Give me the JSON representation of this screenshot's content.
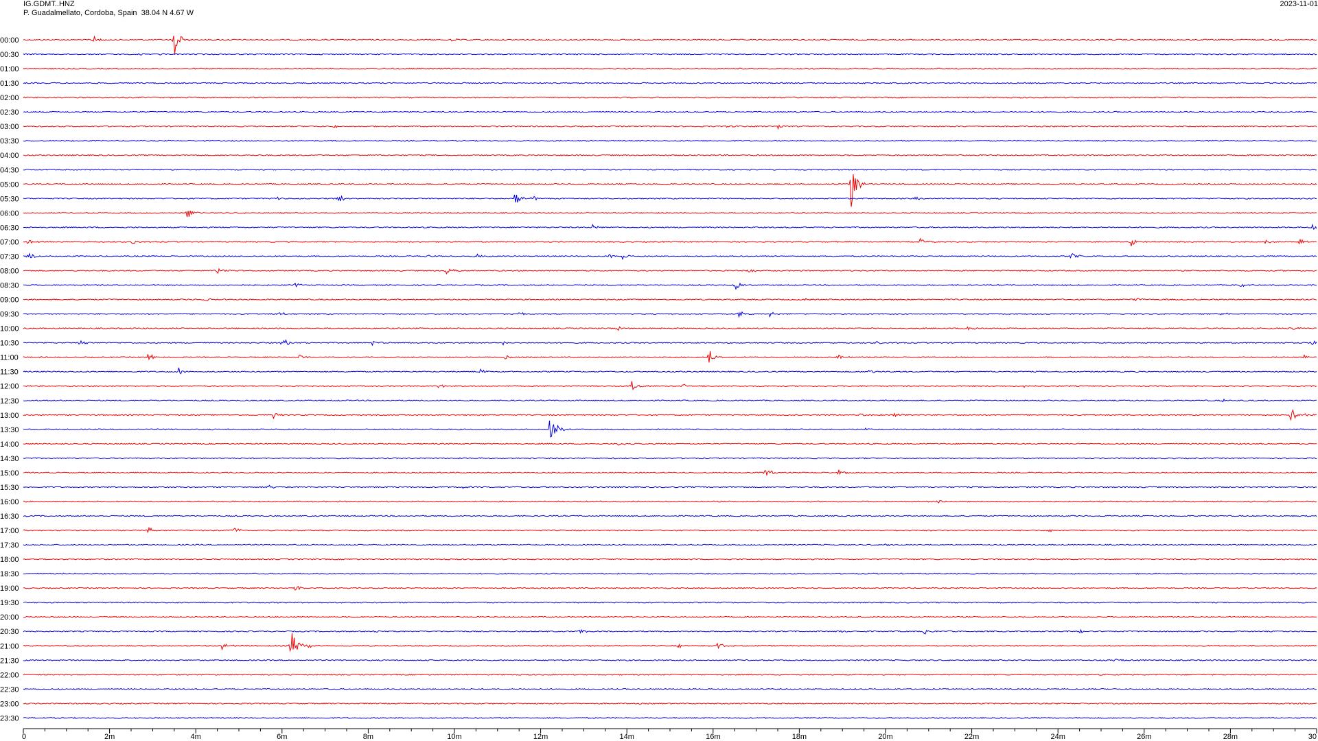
{
  "header": {
    "station": "IG.GDMT..HNZ",
    "location": "P. Guadalmellato, Cordoba, Spain  38.04 N 4.67 W",
    "date": "2023-11-01"
  },
  "colors": {
    "odd_trace": "#ee0000",
    "even_trace": "#0000dd",
    "axis": "#000000"
  },
  "chart_data": {
    "type": "helicorder",
    "row_labels": [
      "00:00",
      "00:30",
      "01:00",
      "01:30",
      "02:00",
      "02:30",
      "03:00",
      "03:30",
      "04:00",
      "04:30",
      "05:00",
      "05:30",
      "06:00",
      "06:30",
      "07:00",
      "07:30",
      "08:00",
      "08:30",
      "09:00",
      "09:30",
      "10:00",
      "10:30",
      "11:00",
      "11:30",
      "12:00",
      "12:30",
      "13:00",
      "13:30",
      "14:00",
      "14:30",
      "15:00",
      "15:30",
      "16:00",
      "16:30",
      "17:00",
      "17:30",
      "18:00",
      "18:30",
      "19:00",
      "19:30",
      "20:00",
      "20:30",
      "21:00",
      "21:30",
      "22:00",
      "22:30",
      "23:00",
      "23:30"
    ],
    "x_ticks": [
      "0",
      "2m",
      "4m",
      "6m",
      "8m",
      "10m",
      "12m",
      "14m",
      "16m",
      "18m",
      "20m",
      "22m",
      "24m",
      "26m",
      "28m",
      "30"
    ],
    "xlim_minutes": [
      0,
      30
    ],
    "events": [
      {
        "row": "00:00",
        "minute": 1.6,
        "amp": 8
      },
      {
        "row": "00:00",
        "minute": 3.5,
        "amp": 24
      },
      {
        "row": "00:00",
        "minute": 9.9,
        "amp": 4
      },
      {
        "row": "00:30",
        "minute": 2.6,
        "amp": 3
      },
      {
        "row": "00:30",
        "minute": 3.2,
        "amp": 2
      },
      {
        "row": "03:00",
        "minute": 7.2,
        "amp": 4
      },
      {
        "row": "03:00",
        "minute": 16.3,
        "amp": 3
      },
      {
        "row": "03:00",
        "minute": 17.5,
        "amp": 5
      },
      {
        "row": "05:00",
        "minute": 19.2,
        "amp": 36
      },
      {
        "row": "05:30",
        "minute": 5.9,
        "amp": 3
      },
      {
        "row": "05:30",
        "minute": 7.3,
        "amp": 8
      },
      {
        "row": "05:30",
        "minute": 11.4,
        "amp": 12
      },
      {
        "row": "05:30",
        "minute": 11.8,
        "amp": 4
      },
      {
        "row": "05:30",
        "minute": 20.7,
        "amp": 3
      },
      {
        "row": "06:00",
        "minute": 3.8,
        "amp": 8
      },
      {
        "row": "06:30",
        "minute": 13.2,
        "amp": 4
      },
      {
        "row": "06:30",
        "minute": 29.9,
        "amp": 6
      },
      {
        "row": "07:00",
        "minute": 0.1,
        "amp": 5
      },
      {
        "row": "07:00",
        "minute": 2.5,
        "amp": 6
      },
      {
        "row": "07:00",
        "minute": 20.8,
        "amp": 5
      },
      {
        "row": "07:00",
        "minute": 25.7,
        "amp": 7
      },
      {
        "row": "07:00",
        "minute": 28.8,
        "amp": 4
      },
      {
        "row": "07:00",
        "minute": 29.6,
        "amp": 5
      },
      {
        "row": "07:30",
        "minute": 0.1,
        "amp": 8
      },
      {
        "row": "07:30",
        "minute": 9.3,
        "amp": 3
      },
      {
        "row": "07:30",
        "minute": 10.5,
        "amp": 4
      },
      {
        "row": "07:30",
        "minute": 13.6,
        "amp": 4
      },
      {
        "row": "07:30",
        "minute": 13.9,
        "amp": 5
      },
      {
        "row": "07:30",
        "minute": 24.3,
        "amp": 6
      },
      {
        "row": "08:00",
        "minute": 4.5,
        "amp": 6
      },
      {
        "row": "08:00",
        "minute": 9.8,
        "amp": 8
      },
      {
        "row": "08:00",
        "minute": 9.9,
        "amp": 7
      },
      {
        "row": "08:00",
        "minute": 16.8,
        "amp": 5
      },
      {
        "row": "08:30",
        "minute": 6.3,
        "amp": 3
      },
      {
        "row": "08:30",
        "minute": 16.5,
        "amp": 9
      },
      {
        "row": "08:30",
        "minute": 28.2,
        "amp": 4
      },
      {
        "row": "09:00",
        "minute": 4.2,
        "amp": 3
      },
      {
        "row": "09:00",
        "minute": 18.1,
        "amp": 2
      },
      {
        "row": "09:00",
        "minute": 25.8,
        "amp": 4
      },
      {
        "row": "09:30",
        "minute": 5.9,
        "amp": 4
      },
      {
        "row": "09:30",
        "minute": 11.5,
        "amp": 4
      },
      {
        "row": "09:30",
        "minute": 16.6,
        "amp": 5
      },
      {
        "row": "09:30",
        "minute": 17.3,
        "amp": 5
      },
      {
        "row": "09:30",
        "minute": 27.8,
        "amp": 4
      },
      {
        "row": "10:00",
        "minute": 13.8,
        "amp": 4
      },
      {
        "row": "10:00",
        "minute": 21.9,
        "amp": 5
      },
      {
        "row": "10:00",
        "minute": 29.4,
        "amp": 4
      },
      {
        "row": "10:30",
        "minute": 1.3,
        "amp": 5
      },
      {
        "row": "10:30",
        "minute": 6.0,
        "amp": 9
      },
      {
        "row": "10:30",
        "minute": 8.1,
        "amp": 4
      },
      {
        "row": "10:30",
        "minute": 11.1,
        "amp": 4
      },
      {
        "row": "10:30",
        "minute": 19.8,
        "amp": 3
      },
      {
        "row": "10:30",
        "minute": 29.9,
        "amp": 6
      },
      {
        "row": "11:00",
        "minute": 2.9,
        "amp": 8
      },
      {
        "row": "11:00",
        "minute": 6.4,
        "amp": 4
      },
      {
        "row": "11:00",
        "minute": 11.1,
        "amp": 6
      },
      {
        "row": "11:00",
        "minute": 15.9,
        "amp": 14
      },
      {
        "row": "11:00",
        "minute": 18.9,
        "amp": 4
      },
      {
        "row": "11:00",
        "minute": 29.7,
        "amp": 3
      },
      {
        "row": "11:30",
        "minute": 3.6,
        "amp": 6
      },
      {
        "row": "11:30",
        "minute": 10.6,
        "amp": 5
      },
      {
        "row": "11:30",
        "minute": 19.6,
        "amp": 4
      },
      {
        "row": "12:00",
        "minute": 9.6,
        "amp": 4
      },
      {
        "row": "12:00",
        "minute": 14.1,
        "amp": 8
      },
      {
        "row": "12:00",
        "minute": 15.3,
        "amp": 4
      },
      {
        "row": "12:00",
        "minute": 23.2,
        "amp": 5
      },
      {
        "row": "12:30",
        "minute": 27.8,
        "amp": 4
      },
      {
        "row": "13:00",
        "minute": 5.8,
        "amp": 5
      },
      {
        "row": "13:00",
        "minute": 19.4,
        "amp": 5
      },
      {
        "row": "13:00",
        "minute": 20.2,
        "amp": 5
      },
      {
        "row": "13:00",
        "minute": 29.4,
        "amp": 14
      },
      {
        "row": "13:00",
        "minute": 29.7,
        "amp": 5
      },
      {
        "row": "13:30",
        "minute": 12.2,
        "amp": 32
      },
      {
        "row": "13:30",
        "minute": 19.5,
        "amp": 3
      },
      {
        "row": "14:00",
        "minute": 13.8,
        "amp": 3
      },
      {
        "row": "15:00",
        "minute": 17.2,
        "amp": 8
      },
      {
        "row": "15:00",
        "minute": 18.9,
        "amp": 5
      },
      {
        "row": "15:30",
        "minute": 5.7,
        "amp": 3
      },
      {
        "row": "15:30",
        "minute": 10.2,
        "amp": 3
      },
      {
        "row": "16:00",
        "minute": 21.2,
        "amp": 3
      },
      {
        "row": "17:00",
        "minute": 2.9,
        "amp": 5
      },
      {
        "row": "17:00",
        "minute": 4.9,
        "amp": 5
      },
      {
        "row": "17:00",
        "minute": 23.8,
        "amp": 4
      },
      {
        "row": "17:30",
        "minute": 20.0,
        "amp": 3
      },
      {
        "row": "19:00",
        "minute": 6.3,
        "amp": 5
      },
      {
        "row": "20:30",
        "minute": 8.1,
        "amp": 3
      },
      {
        "row": "20:30",
        "minute": 12.9,
        "amp": 5
      },
      {
        "row": "20:30",
        "minute": 18.9,
        "amp": 3
      },
      {
        "row": "20:30",
        "minute": 20.9,
        "amp": 4
      },
      {
        "row": "20:30",
        "minute": 24.5,
        "amp": 3
      },
      {
        "row": "21:00",
        "minute": 4.6,
        "amp": 6
      },
      {
        "row": "21:00",
        "minute": 6.2,
        "amp": 26
      },
      {
        "row": "21:00",
        "minute": 6.6,
        "amp": 4
      },
      {
        "row": "21:00",
        "minute": 15.2,
        "amp": 4
      },
      {
        "row": "21:00",
        "minute": 16.1,
        "amp": 5
      },
      {
        "row": "21:30",
        "minute": 25.3,
        "amp": 3
      }
    ],
    "grid": false
  }
}
